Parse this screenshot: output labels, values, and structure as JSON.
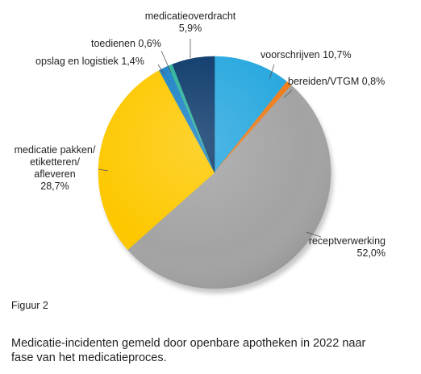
{
  "figure_label": "Figuur 2",
  "caption": "Medicatie-incidenten gemeld door openbare apotheken in 2022 naar fase van het medicatieproces.",
  "chart_data": {
    "type": "pie",
    "title": "",
    "slices": [
      {
        "key": "voorschrijven",
        "name": "voorschrijven",
        "value": 10.7,
        "value_label": "10,7%",
        "color": "#29a8df",
        "label_lines": [
          "voorschrijven 10,7%"
        ]
      },
      {
        "key": "bereiden",
        "name": "bereiden/VTGM",
        "value": 0.8,
        "value_label": "0,8%",
        "color": "#ee7d1c",
        "label_lines": [
          "bereiden/VTGM 0,8%"
        ]
      },
      {
        "key": "receptverwerking",
        "name": "receptverwerking",
        "value": 52.0,
        "value_label": "52,0%",
        "color": "#a3a3a3",
        "label_lines": [
          "receptverwerking",
          "52,0%"
        ]
      },
      {
        "key": "pakken",
        "name": "medicatie pakken/ etiketteren/ afleveren",
        "value": 28.7,
        "value_label": "28,7%",
        "color": "#fdc800",
        "label_lines": [
          "medicatie pakken/",
          "etiketteren/",
          "afleveren",
          "28,7%"
        ]
      },
      {
        "key": "opslag",
        "name": "opslag en logistiek",
        "value": 1.4,
        "value_label": "1,4%",
        "color": "#1b82c6",
        "label_lines": [
          "opslag en logistiek 1,4%"
        ]
      },
      {
        "key": "toedienen",
        "name": "toedienen",
        "value": 0.6,
        "value_label": "0,6%",
        "color": "#2eb39b",
        "label_lines": [
          "toedienen 0,6%"
        ]
      },
      {
        "key": "overdracht",
        "name": "medicatieoverdracht",
        "value": 5.9,
        "value_label": "5,9%",
        "color": "#0d3a6b",
        "label_lines": [
          "medicatieoverdracht",
          "5,9%"
        ]
      }
    ]
  }
}
